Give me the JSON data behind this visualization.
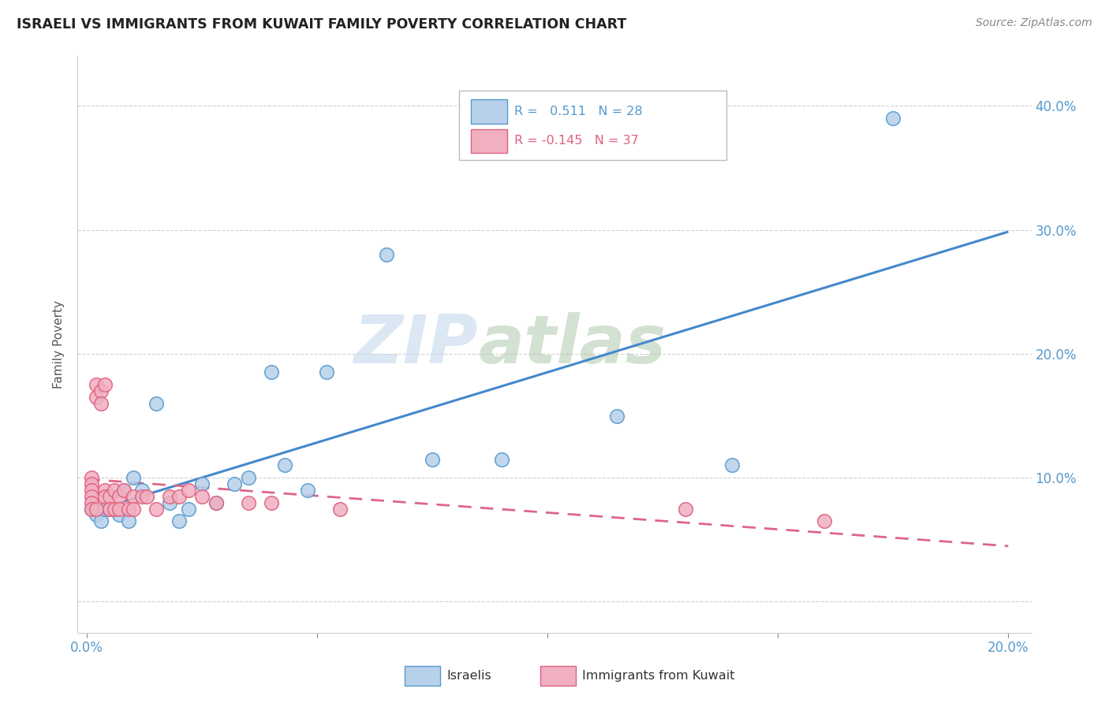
{
  "title": "ISRAELI VS IMMIGRANTS FROM KUWAIT FAMILY POVERTY CORRELATION CHART",
  "source": "Source: ZipAtlas.com",
  "ylabel": "Family Poverty",
  "xlim": [
    -0.002,
    0.205
  ],
  "ylim": [
    -0.025,
    0.44
  ],
  "yticks": [
    0.0,
    0.1,
    0.2,
    0.3,
    0.4
  ],
  "xticks": [
    0.0,
    0.05,
    0.1,
    0.15,
    0.2
  ],
  "israeli_fill": "#b8d0ea",
  "israeli_edge": "#5599cc",
  "kuwait_fill": "#f0b0c0",
  "kuwait_edge": "#e06080",
  "israeli_line": "#4488cc",
  "kuwait_line": "#dd6688",
  "R_israeli": 0.511,
  "N_israeli": 28,
  "R_kuwait": -0.145,
  "N_kuwait": 37,
  "watermark_zip": "ZIP",
  "watermark_atlas": "atlas",
  "background_color": "#ffffff",
  "israelis_x": [
    0.001,
    0.002,
    0.003,
    0.004,
    0.005,
    0.007,
    0.008,
    0.009,
    0.01,
    0.012,
    0.015,
    0.018,
    0.02,
    0.022,
    0.025,
    0.028,
    0.032,
    0.035,
    0.04,
    0.043,
    0.048,
    0.052,
    0.065,
    0.075,
    0.09,
    0.115,
    0.14,
    0.175
  ],
  "israelis_y": [
    0.075,
    0.07,
    0.065,
    0.075,
    0.075,
    0.07,
    0.09,
    0.065,
    0.1,
    0.09,
    0.16,
    0.08,
    0.065,
    0.075,
    0.095,
    0.08,
    0.095,
    0.1,
    0.185,
    0.11,
    0.09,
    0.185,
    0.28,
    0.115,
    0.115,
    0.15,
    0.11,
    0.39
  ],
  "kuwait_x": [
    0.001,
    0.001,
    0.001,
    0.001,
    0.001,
    0.001,
    0.002,
    0.002,
    0.002,
    0.003,
    0.003,
    0.004,
    0.004,
    0.004,
    0.005,
    0.005,
    0.006,
    0.006,
    0.007,
    0.007,
    0.008,
    0.009,
    0.01,
    0.01,
    0.012,
    0.013,
    0.015,
    0.018,
    0.02,
    0.022,
    0.025,
    0.028,
    0.035,
    0.04,
    0.055,
    0.13,
    0.16
  ],
  "kuwait_y": [
    0.1,
    0.095,
    0.09,
    0.085,
    0.08,
    0.075,
    0.175,
    0.165,
    0.075,
    0.17,
    0.16,
    0.175,
    0.09,
    0.085,
    0.085,
    0.075,
    0.09,
    0.075,
    0.085,
    0.075,
    0.09,
    0.075,
    0.085,
    0.075,
    0.085,
    0.085,
    0.075,
    0.085,
    0.085,
    0.09,
    0.085,
    0.08,
    0.08,
    0.08,
    0.075,
    0.075,
    0.065
  ]
}
